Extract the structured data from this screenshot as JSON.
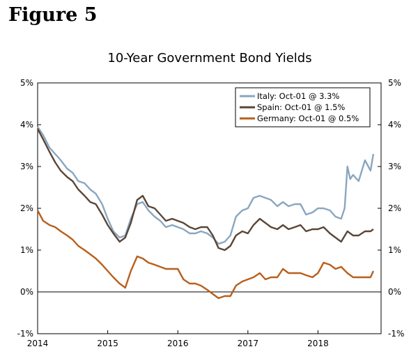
{
  "figure_label": "Figure 5",
  "chart_data": {
    "type": "line",
    "title": "10-Year Government Bond Yields",
    "xlabel": "",
    "ylabel": "",
    "xlim": [
      2014.0,
      2018.9
    ],
    "ylim": [
      -1,
      5
    ],
    "x_ticks": [
      {
        "value": 2014,
        "label": "2014"
      },
      {
        "value": 2015,
        "label": "2015"
      },
      {
        "value": 2016,
        "label": "2016"
      },
      {
        "value": 2017,
        "label": "2017"
      },
      {
        "value": 2018,
        "label": "2018"
      }
    ],
    "y_ticks": [
      {
        "value": 5,
        "label": "5%"
      },
      {
        "value": 4,
        "label": "4%"
      },
      {
        "value": 3,
        "label": "3%"
      },
      {
        "value": 2,
        "label": "2%"
      },
      {
        "value": 1,
        "label": "1%"
      },
      {
        "value": 0,
        "label": "0%"
      },
      {
        "value": -1,
        "label": "-1%"
      }
    ],
    "grid": false,
    "zero_line": true,
    "legend_position": "top-right",
    "series": [
      {
        "name": "Italy: Oct-01 @ 3.3%",
        "color": "#8aa6bf",
        "points": [
          [
            2014.0,
            3.95
          ],
          [
            2014.08,
            3.75
          ],
          [
            2014.17,
            3.45
          ],
          [
            2014.25,
            3.3
          ],
          [
            2014.33,
            3.15
          ],
          [
            2014.42,
            2.95
          ],
          [
            2014.5,
            2.85
          ],
          [
            2014.58,
            2.65
          ],
          [
            2014.67,
            2.6
          ],
          [
            2014.75,
            2.45
          ],
          [
            2014.83,
            2.35
          ],
          [
            2014.92,
            2.1
          ],
          [
            2015.0,
            1.75
          ],
          [
            2015.08,
            1.45
          ],
          [
            2015.17,
            1.3
          ],
          [
            2015.25,
            1.35
          ],
          [
            2015.33,
            1.75
          ],
          [
            2015.42,
            2.1
          ],
          [
            2015.5,
            2.15
          ],
          [
            2015.58,
            1.95
          ],
          [
            2015.67,
            1.8
          ],
          [
            2015.75,
            1.7
          ],
          [
            2015.83,
            1.55
          ],
          [
            2015.92,
            1.6
          ],
          [
            2016.0,
            1.55
          ],
          [
            2016.08,
            1.5
          ],
          [
            2016.17,
            1.4
          ],
          [
            2016.25,
            1.4
          ],
          [
            2016.33,
            1.45
          ],
          [
            2016.42,
            1.4
          ],
          [
            2016.5,
            1.3
          ],
          [
            2016.58,
            1.15
          ],
          [
            2016.67,
            1.2
          ],
          [
            2016.75,
            1.35
          ],
          [
            2016.83,
            1.8
          ],
          [
            2016.92,
            1.95
          ],
          [
            2017.0,
            2.0
          ],
          [
            2017.08,
            2.25
          ],
          [
            2017.17,
            2.3
          ],
          [
            2017.25,
            2.25
          ],
          [
            2017.33,
            2.2
          ],
          [
            2017.42,
            2.05
          ],
          [
            2017.5,
            2.15
          ],
          [
            2017.58,
            2.05
          ],
          [
            2017.67,
            2.1
          ],
          [
            2017.75,
            2.1
          ],
          [
            2017.83,
            1.85
          ],
          [
            2017.92,
            1.9
          ],
          [
            2018.0,
            2.0
          ],
          [
            2018.08,
            2.0
          ],
          [
            2018.17,
            1.95
          ],
          [
            2018.25,
            1.8
          ],
          [
            2018.33,
            1.75
          ],
          [
            2018.38,
            2.0
          ],
          [
            2018.42,
            3.0
          ],
          [
            2018.46,
            2.7
          ],
          [
            2018.5,
            2.8
          ],
          [
            2018.58,
            2.65
          ],
          [
            2018.67,
            3.15
          ],
          [
            2018.75,
            2.9
          ],
          [
            2018.79,
            3.3
          ]
        ]
      },
      {
        "name": "Spain: Oct-01 @ 1.5%",
        "color": "#5a4638",
        "points": [
          [
            2014.0,
            3.9
          ],
          [
            2014.08,
            3.65
          ],
          [
            2014.17,
            3.35
          ],
          [
            2014.25,
            3.1
          ],
          [
            2014.33,
            2.9
          ],
          [
            2014.42,
            2.75
          ],
          [
            2014.5,
            2.65
          ],
          [
            2014.58,
            2.45
          ],
          [
            2014.67,
            2.3
          ],
          [
            2014.75,
            2.15
          ],
          [
            2014.83,
            2.1
          ],
          [
            2014.92,
            1.85
          ],
          [
            2015.0,
            1.6
          ],
          [
            2015.08,
            1.4
          ],
          [
            2015.17,
            1.2
          ],
          [
            2015.25,
            1.3
          ],
          [
            2015.33,
            1.65
          ],
          [
            2015.42,
            2.2
          ],
          [
            2015.5,
            2.3
          ],
          [
            2015.58,
            2.05
          ],
          [
            2015.67,
            2.0
          ],
          [
            2015.75,
            1.85
          ],
          [
            2015.83,
            1.7
          ],
          [
            2015.92,
            1.75
          ],
          [
            2016.0,
            1.7
          ],
          [
            2016.08,
            1.65
          ],
          [
            2016.17,
            1.55
          ],
          [
            2016.25,
            1.5
          ],
          [
            2016.33,
            1.55
          ],
          [
            2016.42,
            1.55
          ],
          [
            2016.5,
            1.35
          ],
          [
            2016.58,
            1.05
          ],
          [
            2016.67,
            1.0
          ],
          [
            2016.75,
            1.1
          ],
          [
            2016.83,
            1.35
          ],
          [
            2016.92,
            1.45
          ],
          [
            2017.0,
            1.4
          ],
          [
            2017.08,
            1.6
          ],
          [
            2017.17,
            1.75
          ],
          [
            2017.25,
            1.65
          ],
          [
            2017.33,
            1.55
          ],
          [
            2017.42,
            1.5
          ],
          [
            2017.5,
            1.6
          ],
          [
            2017.58,
            1.5
          ],
          [
            2017.67,
            1.55
          ],
          [
            2017.75,
            1.6
          ],
          [
            2017.83,
            1.45
          ],
          [
            2017.92,
            1.5
          ],
          [
            2018.0,
            1.5
          ],
          [
            2018.08,
            1.55
          ],
          [
            2018.17,
            1.4
          ],
          [
            2018.25,
            1.3
          ],
          [
            2018.33,
            1.2
          ],
          [
            2018.42,
            1.45
          ],
          [
            2018.5,
            1.35
          ],
          [
            2018.58,
            1.35
          ],
          [
            2018.67,
            1.45
          ],
          [
            2018.75,
            1.45
          ],
          [
            2018.79,
            1.5
          ]
        ]
      },
      {
        "name": "Germany: Oct-01 @ 0.5%",
        "color": "#b85f1c",
        "points": [
          [
            2014.0,
            1.95
          ],
          [
            2014.08,
            1.7
          ],
          [
            2014.17,
            1.6
          ],
          [
            2014.25,
            1.55
          ],
          [
            2014.33,
            1.45
          ],
          [
            2014.42,
            1.35
          ],
          [
            2014.5,
            1.25
          ],
          [
            2014.58,
            1.1
          ],
          [
            2014.67,
            1.0
          ],
          [
            2014.75,
            0.9
          ],
          [
            2014.83,
            0.8
          ],
          [
            2014.92,
            0.65
          ],
          [
            2015.0,
            0.5
          ],
          [
            2015.08,
            0.35
          ],
          [
            2015.17,
            0.2
          ],
          [
            2015.25,
            0.1
          ],
          [
            2015.33,
            0.5
          ],
          [
            2015.42,
            0.85
          ],
          [
            2015.5,
            0.8
          ],
          [
            2015.58,
            0.7
          ],
          [
            2015.67,
            0.65
          ],
          [
            2015.75,
            0.6
          ],
          [
            2015.83,
            0.55
          ],
          [
            2015.92,
            0.55
          ],
          [
            2016.0,
            0.55
          ],
          [
            2016.08,
            0.3
          ],
          [
            2016.17,
            0.2
          ],
          [
            2016.25,
            0.2
          ],
          [
            2016.33,
            0.15
          ],
          [
            2016.42,
            0.05
          ],
          [
            2016.5,
            -0.05
          ],
          [
            2016.58,
            -0.15
          ],
          [
            2016.67,
            -0.1
          ],
          [
            2016.75,
            -0.1
          ],
          [
            2016.83,
            0.15
          ],
          [
            2016.92,
            0.25
          ],
          [
            2017.0,
            0.3
          ],
          [
            2017.08,
            0.35
          ],
          [
            2017.17,
            0.45
          ],
          [
            2017.25,
            0.3
          ],
          [
            2017.33,
            0.35
          ],
          [
            2017.42,
            0.35
          ],
          [
            2017.5,
            0.55
          ],
          [
            2017.58,
            0.45
          ],
          [
            2017.67,
            0.45
          ],
          [
            2017.75,
            0.45
          ],
          [
            2017.83,
            0.4
          ],
          [
            2017.92,
            0.35
          ],
          [
            2018.0,
            0.45
          ],
          [
            2018.08,
            0.7
          ],
          [
            2018.17,
            0.65
          ],
          [
            2018.25,
            0.55
          ],
          [
            2018.33,
            0.6
          ],
          [
            2018.42,
            0.45
          ],
          [
            2018.5,
            0.35
          ],
          [
            2018.58,
            0.35
          ],
          [
            2018.67,
            0.35
          ],
          [
            2018.75,
            0.35
          ],
          [
            2018.79,
            0.5
          ]
        ]
      }
    ]
  }
}
